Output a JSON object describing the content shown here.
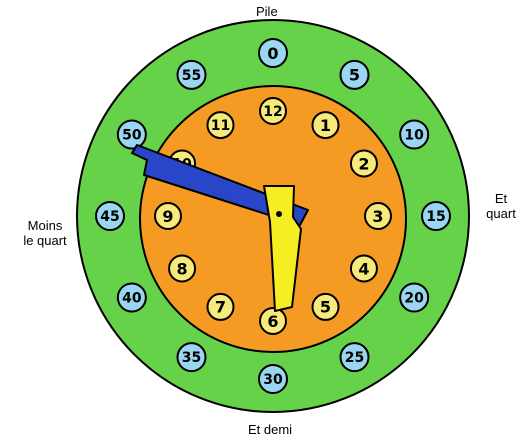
{
  "labels": {
    "top": "Pile",
    "right_line1": "Et",
    "right_line2": "quart",
    "bottom": "Et demi",
    "left_line1": "Moins",
    "left_line2": "le quart"
  },
  "minute_marks": [
    "0",
    "5",
    "10",
    "15",
    "20",
    "25",
    "30",
    "35",
    "40",
    "45",
    "50",
    "55"
  ],
  "hour_marks": [
    "12",
    "1",
    "2",
    "3",
    "4",
    "5",
    "6",
    "7",
    "8",
    "9",
    "10",
    "11"
  ],
  "time_shown": {
    "hour": 6,
    "minute": 50
  },
  "colors": {
    "outer_ring": "#66d24a",
    "inner_dial": "#f59a22",
    "minute_badge": "#9ad6ef",
    "hour_badge": "#f5ea7a",
    "minute_hand": "#2a46c8",
    "hour_hand": "#f5ee22",
    "outline": "#000000"
  }
}
